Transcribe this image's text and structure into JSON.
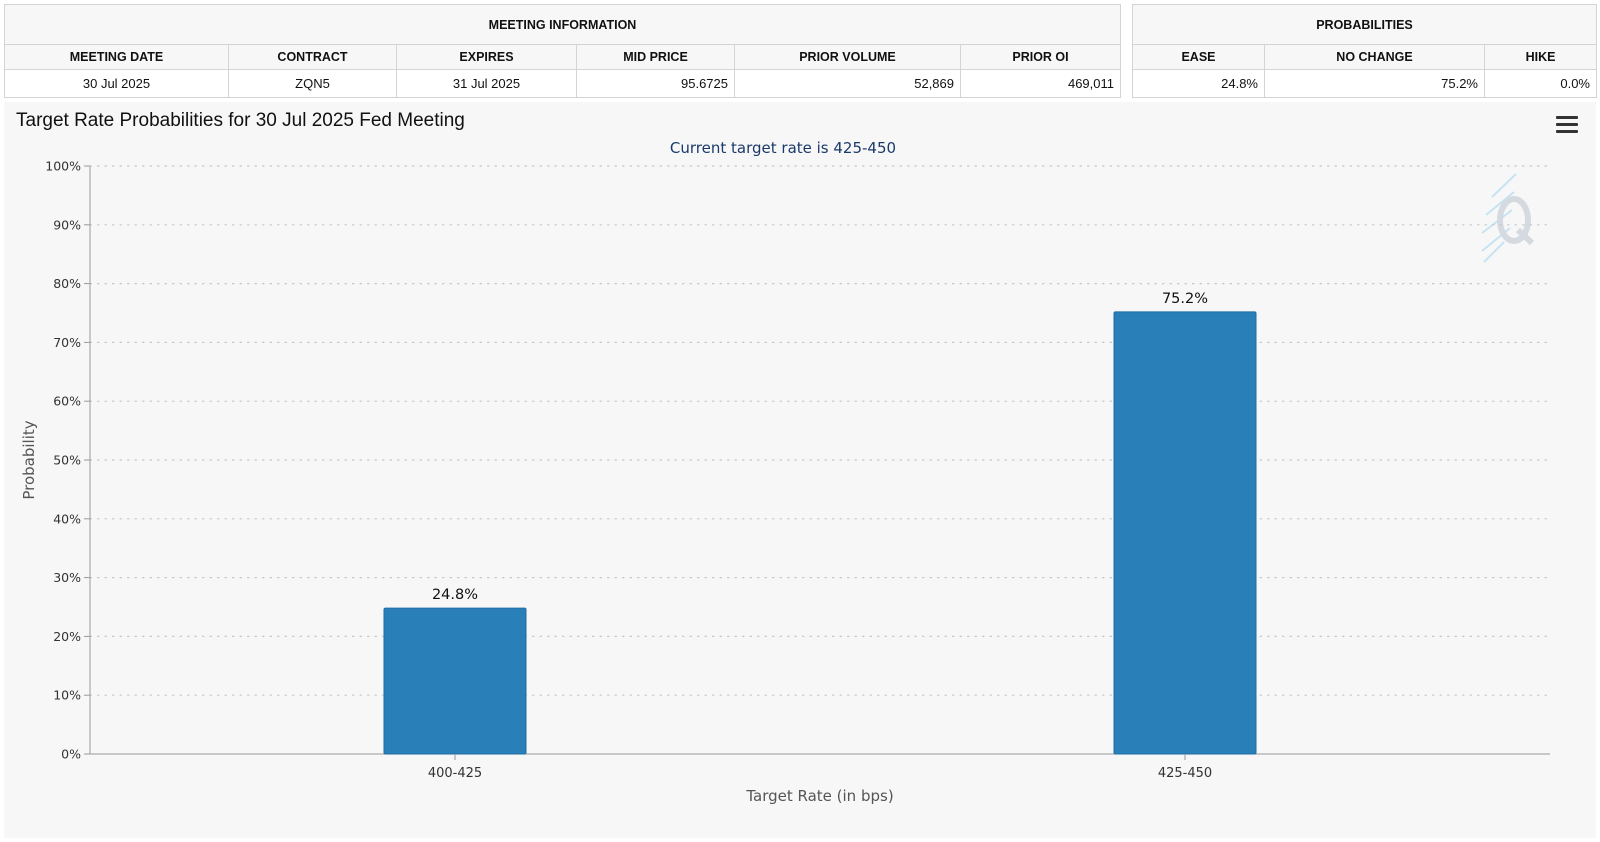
{
  "meeting_info": {
    "header": "MEETING INFORMATION",
    "columns": [
      "MEETING DATE",
      "CONTRACT",
      "EXPIRES",
      "MID PRICE",
      "PRIOR VOLUME",
      "PRIOR OI"
    ],
    "row": {
      "meeting_date": "30 Jul 2025",
      "contract": "ZQN5",
      "expires": "31 Jul 2025",
      "mid_price": "95.6725",
      "prior_volume": "52,869",
      "prior_oi": "469,011"
    }
  },
  "probabilities": {
    "header": "PROBABILITIES",
    "columns": [
      "EASE",
      "NO CHANGE",
      "HIKE"
    ],
    "row": {
      "ease": "24.8%",
      "no_change": "75.2%",
      "hike": "0.0%"
    }
  },
  "chart_data": {
    "type": "bar",
    "title": "Target Rate Probabilities for 30 Jul 2025 Fed Meeting",
    "subtitle": "Current target rate is 425-450",
    "xlabel": "Target Rate (in bps)",
    "ylabel": "Probability",
    "categories": [
      "400-425",
      "425-450"
    ],
    "values": [
      24.8,
      75.2
    ],
    "data_labels": [
      "24.8%",
      "75.2%"
    ],
    "ylim": [
      0,
      100
    ],
    "yticks": [
      0,
      10,
      20,
      30,
      40,
      50,
      60,
      70,
      80,
      90,
      100
    ],
    "ytick_labels": [
      "0%",
      "10%",
      "20%",
      "30%",
      "40%",
      "50%",
      "60%",
      "70%",
      "80%",
      "90%",
      "100%"
    ],
    "grid": true,
    "bar_color": "#2980b9",
    "subtitle_color": "#1a3a6b"
  },
  "icons": {
    "menu": "hamburger-menu-icon",
    "logo": "q-logo-watermark"
  }
}
